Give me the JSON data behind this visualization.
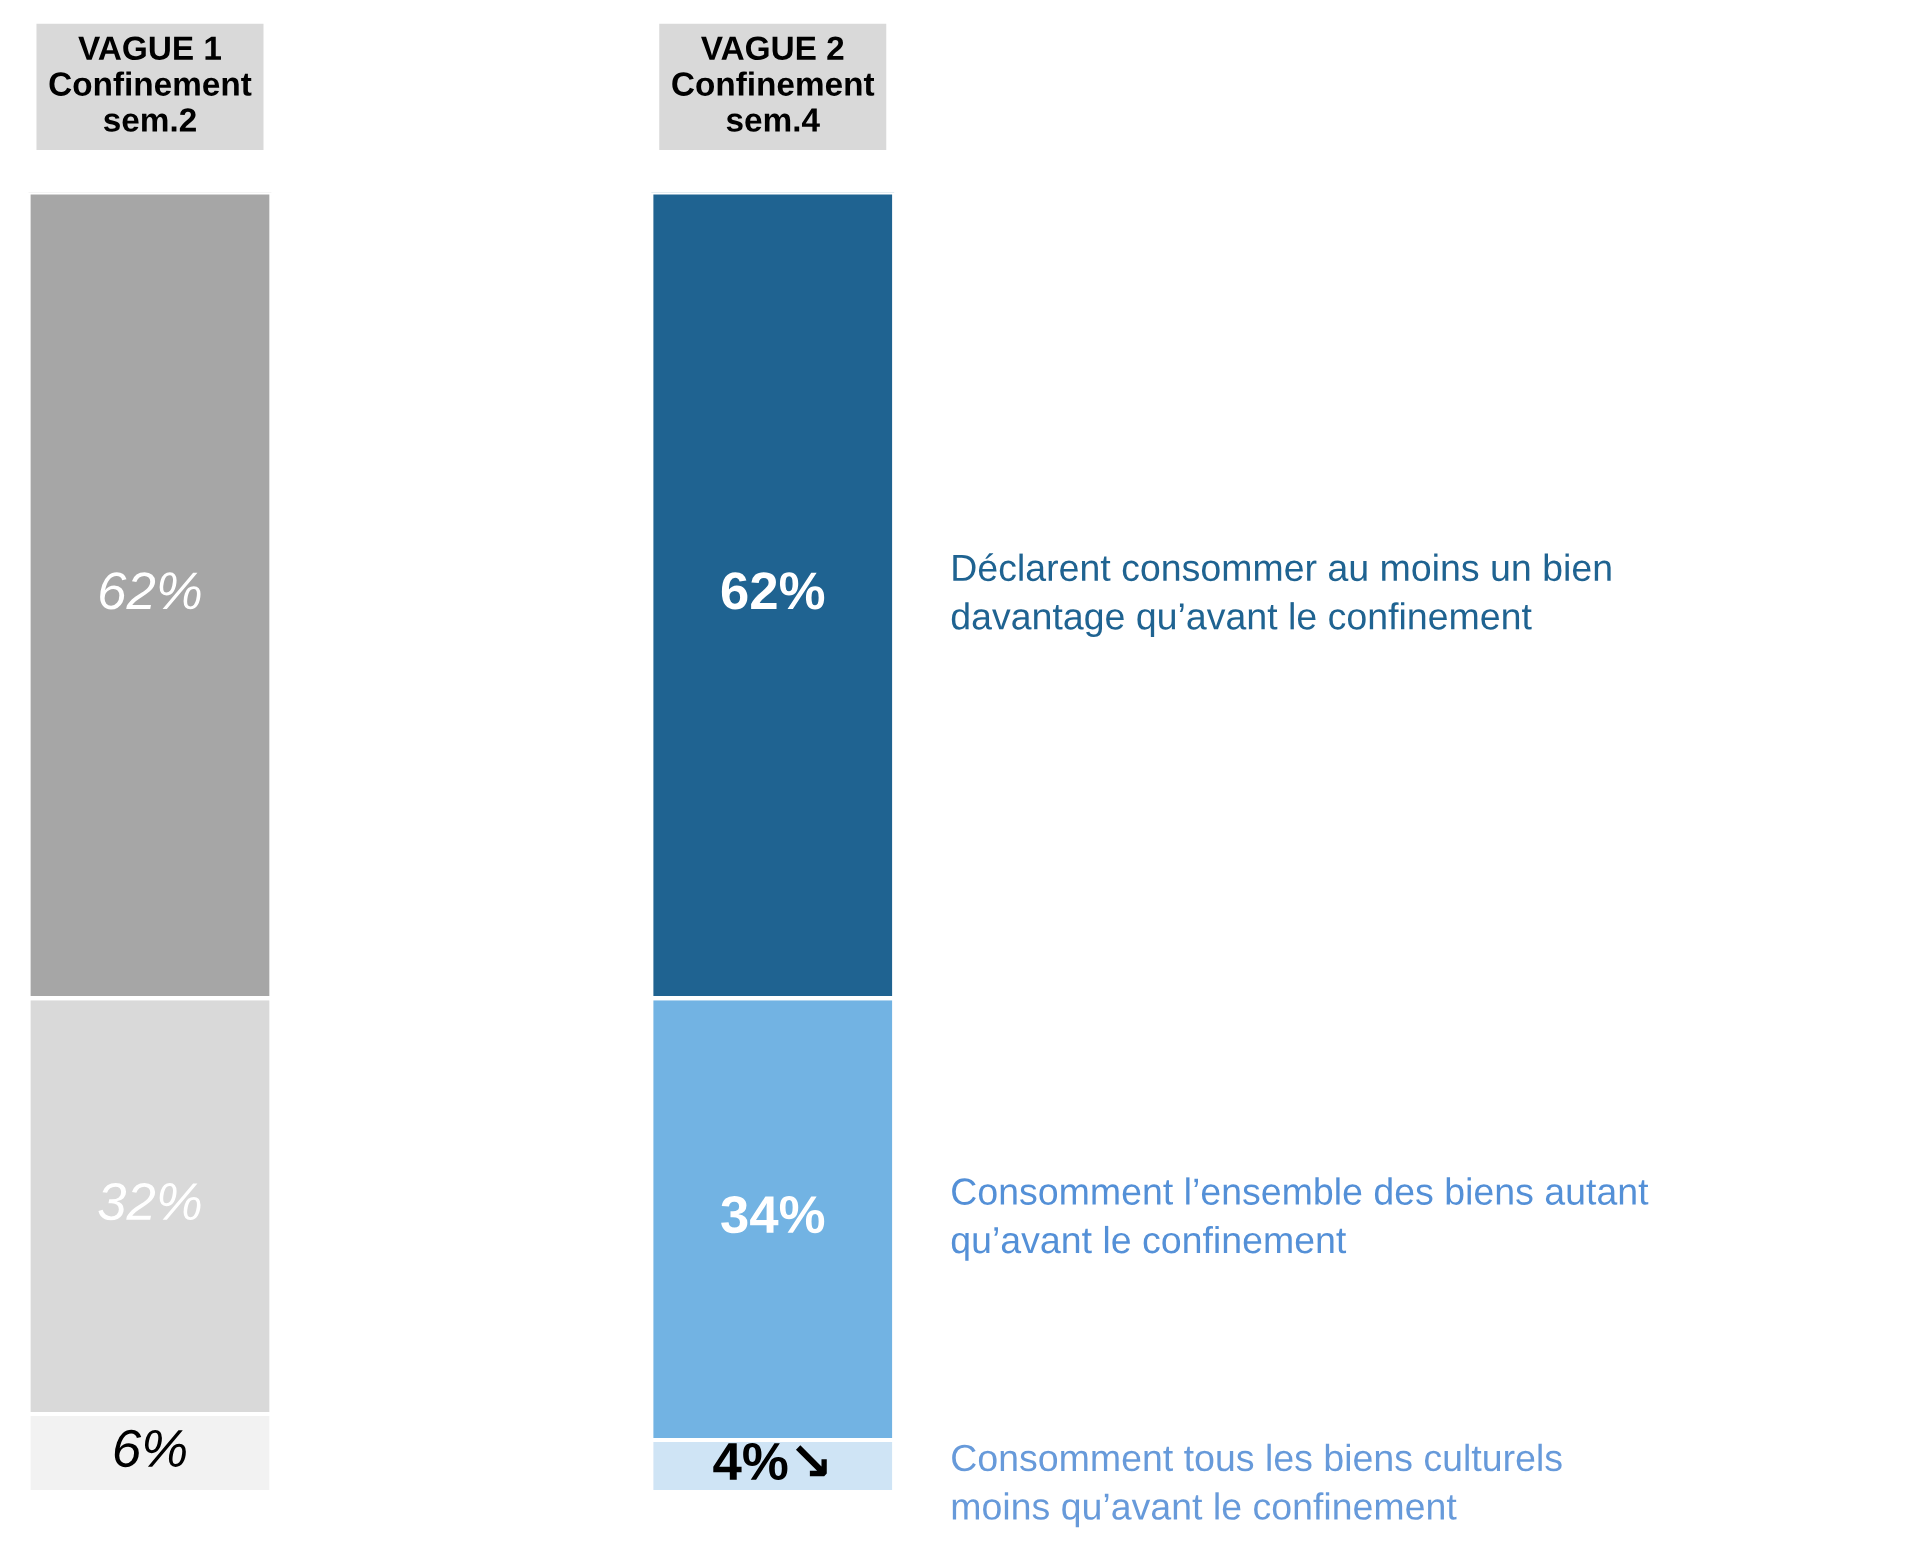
{
  "chart_data": {
    "type": "bar",
    "stacked": true,
    "categories": [
      "VAGUE 1\nConfinement\nsem.2",
      "VAGUE 2\nConfinement\nsem.4"
    ],
    "series": [
      {
        "name": "Consomment tous les biens culturels\nmoins qu’avant le confinement",
        "color": "#cfe4f5",
        "colors": [
          "#f2f2f2",
          "#cfe4f5"
        ],
        "values": [
          6,
          4
        ],
        "value_labels": [
          "6%",
          "4%↘"
        ]
      },
      {
        "name": "Consomment l’ensemble des biens autant\nqu’avant le confinement",
        "color": "#72b3e3",
        "colors": [
          "#d9d9d9",
          "#72b3e3"
        ],
        "values": [
          32,
          34
        ],
        "value_labels": [
          "32%",
          "34%"
        ]
      },
      {
        "name": "Déclarent consommer au moins un bien\ndavantage qu’avant le confinement",
        "color": "#1f6391",
        "colors": [
          "#a6a6a6",
          "#1f6391"
        ],
        "values": [
          62,
          62
        ],
        "value_labels": [
          "62%",
          "62%"
        ]
      }
    ]
  }
}
